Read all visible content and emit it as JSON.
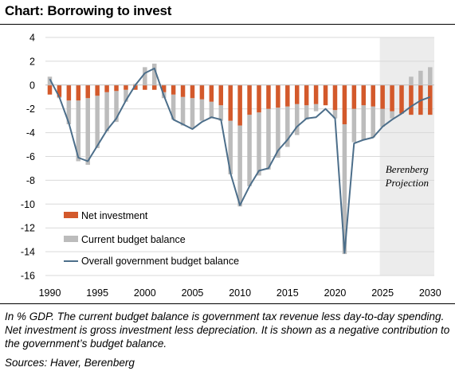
{
  "title": "Chart: Borrowing to invest",
  "note": "In % GDP. The current budget balance is government tax revenue less day-to-day spending. Net investment is gross investment less depreciation. It is shown as a negative contribution to the government’s budget balance.",
  "sources": "Sources: Haver, Berenberg",
  "chart_data": {
    "type": "bar",
    "subtype": "stacked bar with line overlay",
    "x": [
      1990,
      1991,
      1992,
      1993,
      1994,
      1995,
      1996,
      1997,
      1998,
      1999,
      2000,
      2001,
      2002,
      2003,
      2004,
      2005,
      2006,
      2007,
      2008,
      2009,
      2010,
      2011,
      2012,
      2013,
      2014,
      2015,
      2016,
      2017,
      2018,
      2019,
      2020,
      2021,
      2022,
      2023,
      2024,
      2025,
      2026,
      2027,
      2028,
      2029,
      2030
    ],
    "x_ticks": [
      "1990",
      "1995",
      "2000",
      "2005",
      "2010",
      "2015",
      "2020",
      "2025",
      "2030"
    ],
    "y_ticks": [
      "4",
      "2",
      "0",
      "-2",
      "-4",
      "-6",
      "-8",
      "-10",
      "-12",
      "-14",
      "-16"
    ],
    "ylim": [
      -16,
      4
    ],
    "legend_position": "bottom-left",
    "series": [
      {
        "name": "Net investment",
        "type": "bar",
        "color": "#d3592b",
        "values": [
          -0.8,
          -1.0,
          -1.3,
          -1.3,
          -1.1,
          -0.9,
          -0.6,
          -0.5,
          -0.4,
          -0.4,
          -0.4,
          -0.4,
          -0.6,
          -0.8,
          -1.0,
          -1.1,
          -1.2,
          -1.4,
          -1.7,
          -3.0,
          -3.4,
          -2.5,
          -2.3,
          -2.0,
          -1.9,
          -1.8,
          -1.6,
          -1.7,
          -1.6,
          -1.7,
          -2.1,
          -3.3,
          -2.0,
          -1.7,
          -1.8,
          -2.0,
          -2.2,
          -2.4,
          -2.5,
          -2.5,
          -2.5
        ]
      },
      {
        "name": "Current budget balance",
        "type": "bar",
        "color": "#bcbcbc",
        "values": [
          0.7,
          -0.1,
          -2.0,
          -5.1,
          -5.6,
          -4.4,
          -3.3,
          -2.6,
          -1.0,
          0.1,
          1.5,
          1.8,
          -0.5,
          -2.1,
          -2.4,
          -2.5,
          -1.8,
          -1.4,
          -1.3,
          -4.5,
          -6.8,
          -6.0,
          -5.3,
          -5.1,
          -4.2,
          -3.4,
          -2.6,
          -1.2,
          -0.6,
          0.0,
          -0.7,
          -10.9,
          -2.8,
          -2.9,
          -2.6,
          -1.5,
          -0.6,
          0.0,
          0.7,
          1.2,
          1.5
        ]
      },
      {
        "name": "Overall government budget balance",
        "type": "line",
        "color": "#4c6e8a",
        "values": [
          0.5,
          -1.0,
          -3.2,
          -6.1,
          -6.4,
          -5.1,
          -3.8,
          -2.8,
          -1.3,
          0.0,
          1.0,
          1.4,
          -0.9,
          -2.9,
          -3.3,
          -3.7,
          -3.1,
          -2.7,
          -2.9,
          -7.4,
          -10.1,
          -8.5,
          -7.2,
          -7.0,
          -5.5,
          -4.6,
          -3.5,
          -2.8,
          -2.7,
          -2.0,
          -2.8,
          -14.1,
          -4.9,
          -4.6,
          -4.4,
          -3.5,
          -2.9,
          -2.4,
          -1.8,
          -1.3,
          -1.0
        ]
      }
    ],
    "projection": {
      "label_line1": "Berenberg",
      "label_line2": "Projection",
      "from_year": 2025,
      "to_year": 2030,
      "shade_color": "#ececec"
    }
  }
}
